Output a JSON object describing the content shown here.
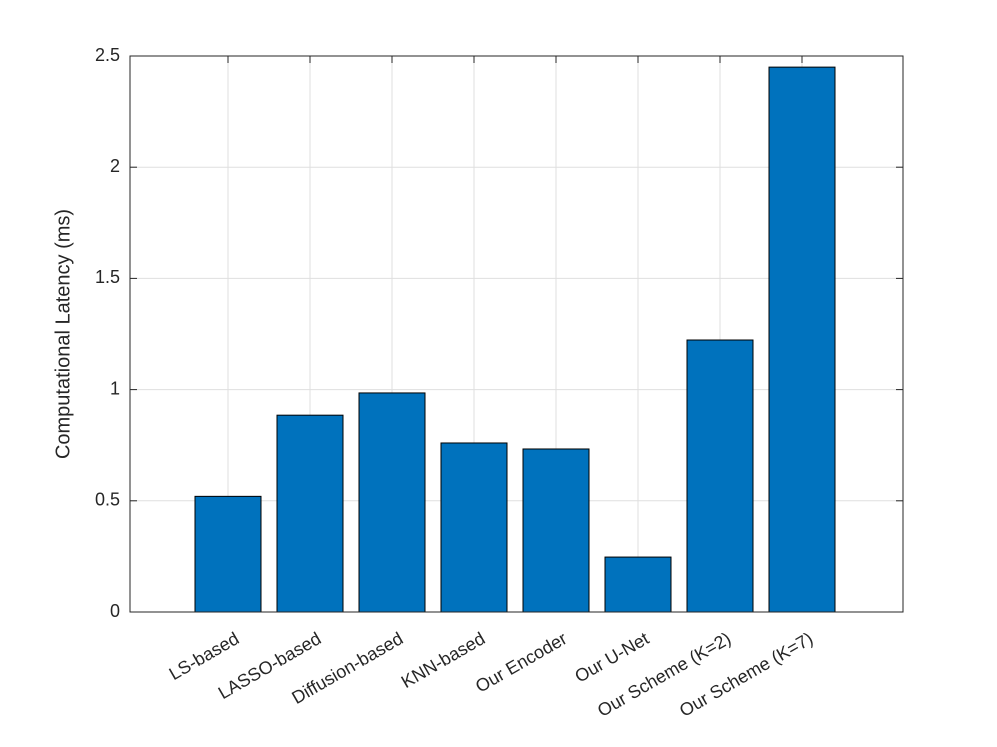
{
  "chart_data": {
    "type": "bar",
    "y_label": "Computational Latency (ms)",
    "categories": [
      "LS-based",
      "LASSO-based",
      "Diffusion-based",
      "KNN-based",
      "Our Encoder",
      "Our U-Net",
      "Our Scheme (K=2)",
      "Our Scheme (K=7)"
    ],
    "values": [
      0.52,
      0.885,
      0.985,
      0.76,
      0.733,
      0.247,
      1.223,
      2.45
    ],
    "color": "#0072bd",
    "ylim": [
      0,
      2.5
    ],
    "yticks": [
      0,
      0.5,
      1,
      1.5,
      2,
      2.5
    ],
    "grid": true
  }
}
